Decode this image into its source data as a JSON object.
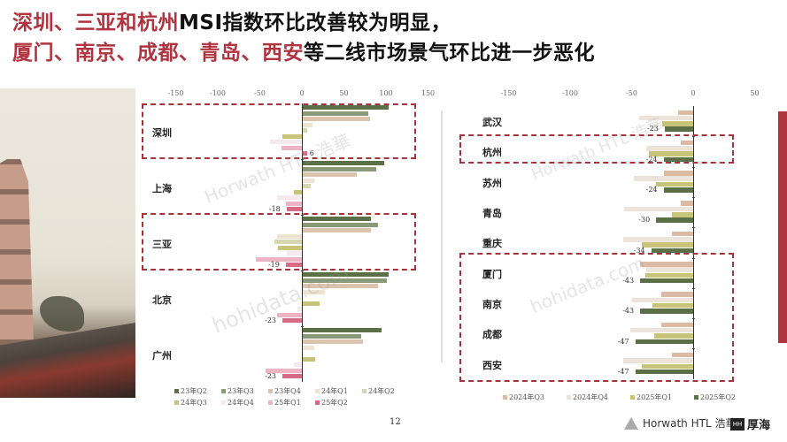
{
  "title": {
    "line1": {
      "highlight": "深圳、三亚和杭州",
      "rest": "MSI指数环比改善较为明显，"
    },
    "line2": {
      "highlight": "厦门、南京、成都、青岛、西安",
      "rest": "等二线市场景气环比进一步恶化"
    }
  },
  "colors": {
    "accent": "#b0343f",
    "23Q2": "#5b7046",
    "23Q3": "#8a9a78",
    "23Q4": "#dcc3ad",
    "24Q1": "#eee4d4",
    "24Q2": "#d6d6b0",
    "24Q3": "#c7c47a",
    "24Q4": "#f4e9ee",
    "25Q1": "#eeb4c3",
    "25Q2": "#d76a84",
    "2024Q3": "#dcbba4",
    "2024Q4": "#ece4da",
    "2025Q1": "#c7c47a",
    "2025Q2": "#5b7046"
  },
  "page_number": "12",
  "logos": {
    "horwath": "Horwath HTL 浩華",
    "hohi": "厚海",
    "hohi_box": "HH"
  },
  "watermarks": [
    "Horwath HTL 浩華",
    "hohidata.com"
  ],
  "chart_data": [
    {
      "type": "bar",
      "orientation": "horizontal",
      "title": "",
      "xlim": [
        -150,
        150
      ],
      "xticks": [
        "-150",
        "-100",
        "-50",
        "0",
        "50",
        "100",
        "150"
      ],
      "categories": [
        "深圳",
        "上海",
        "三亚",
        "北京",
        "广州"
      ],
      "highlighted": [
        "深圳",
        "三亚"
      ],
      "series": [
        {
          "name": "23年Q2",
          "key": "23Q2",
          "values": [
            103,
            98,
            82,
            103,
            95
          ]
        },
        {
          "name": "23年Q3",
          "key": "23Q3",
          "values": [
            79,
            88,
            91,
            101,
            71
          ]
        },
        {
          "name": "23年Q4",
          "key": "23Q4",
          "values": [
            81,
            65,
            82,
            91,
            73
          ]
        },
        {
          "name": "24年Q1",
          "key": "24Q1",
          "values": [
            13,
            15,
            -30,
            27,
            15
          ]
        },
        {
          "name": "24年Q2",
          "key": "24Q2",
          "values": [
            6,
            10,
            -33,
            0,
            0
          ]
        },
        {
          "name": "24年Q3",
          "key": "24Q3",
          "values": [
            -23,
            -9,
            -28,
            21,
            16
          ]
        },
        {
          "name": "24年Q4",
          "key": "24Q4",
          "values": [
            -38,
            -30,
            -18,
            -5,
            -10
          ]
        },
        {
          "name": "25年Q1",
          "key": "25Q1",
          "values": [
            -24,
            -19,
            -55,
            -29,
            -43
          ]
        },
        {
          "name": "25年Q2",
          "key": "25Q2",
          "values": [
            6,
            -18,
            -19,
            -23,
            -23
          ]
        }
      ],
      "data_labels": {
        "深圳": "6",
        "上海": "-18",
        "三亚": "-19",
        "北京": "-23",
        "广州": "-23"
      },
      "legend": [
        "23年Q2",
        "23年Q3",
        "23年Q4",
        "24年Q1",
        "24年Q2",
        "24年Q3",
        "24年Q4",
        "25年Q1",
        "25年Q2"
      ],
      "legend_position": "bottom"
    },
    {
      "type": "bar",
      "orientation": "horizontal",
      "title": "",
      "xlim": [
        -150,
        50
      ],
      "xticks": [
        "-150",
        "-100",
        "-50",
        "0",
        "50"
      ],
      "categories": [
        "武汉",
        "杭州",
        "苏州",
        "青岛",
        "重庆",
        "厦门",
        "南京",
        "成都",
        "西安"
      ],
      "highlighted": [
        "杭州",
        "厦门",
        "南京",
        "成都",
        "西安"
      ],
      "series": [
        {
          "name": "2024年Q3",
          "key": "2024Q3",
          "values": [
            -12,
            -10,
            -24,
            -10,
            -17,
            -43,
            -26,
            -26,
            -17
          ]
        },
        {
          "name": "2024年Q4",
          "key": "2024Q4",
          "values": [
            -44,
            -38,
            -48,
            -56,
            -57,
            -38,
            -50,
            -51,
            -57
          ]
        },
        {
          "name": "2025年Q1",
          "key": "2025Q1",
          "values": [
            -25,
            -36,
            -30,
            -17,
            -42,
            -39,
            -33,
            -32,
            -42
          ]
        },
        {
          "name": "2025年Q2",
          "key": "2025Q2",
          "values": [
            -23,
            -24,
            -24,
            -30,
            -34,
            -43,
            -43,
            -47,
            -47
          ]
        }
      ],
      "data_labels": {
        "武汉": "-23",
        "杭州": "-24",
        "苏州": "-24",
        "青岛": "-30",
        "重庆": "-34",
        "厦门": "-43",
        "南京": "-43",
        "成都": "-47",
        "西安": "-47"
      },
      "legend": [
        "2024年Q3",
        "2024年Q4",
        "2025年Q1",
        "2025年Q2"
      ],
      "legend_position": "bottom"
    }
  ]
}
